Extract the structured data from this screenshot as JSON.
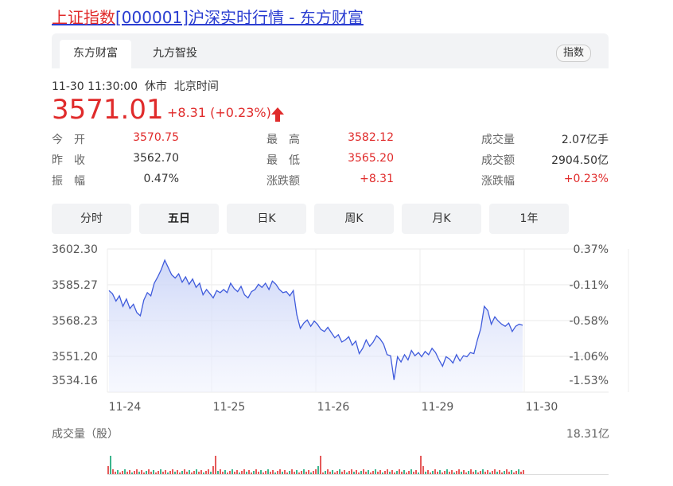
{
  "page_title": {
    "part1": "上证指数",
    "part2": "[000001]沪深实时行情 - 东方财富"
  },
  "tabs": [
    {
      "label": "东方财富"
    },
    {
      "label": "九方智投"
    }
  ],
  "tab_pill": "指数",
  "quote": {
    "time": "11-30 11:30:00",
    "status": "休市",
    "tz": "北京时间",
    "price": "3571.01",
    "change": "+8.31 (+0.23%)"
  },
  "stats": [
    {
      "label": "今　开",
      "value": "3570.75",
      "color": "red"
    },
    {
      "label": "最　高",
      "value": "3582.12",
      "color": "red"
    },
    {
      "label": "成交量",
      "value": "2.07亿手",
      "color": "black"
    },
    {
      "label": "昨　收",
      "value": "3562.70",
      "color": "black"
    },
    {
      "label": "最　低",
      "value": "3565.20",
      "color": "red"
    },
    {
      "label": "成交额",
      "value": "2904.50亿",
      "color": "black"
    },
    {
      "label": "振　幅",
      "value": "0.47%",
      "color": "black"
    },
    {
      "label": "涨跌额",
      "value": "+8.31",
      "color": "red"
    },
    {
      "label": "涨跌幅",
      "value": "+0.23%",
      "color": "red"
    }
  ],
  "period_buttons": [
    "分时",
    "五日",
    "日K",
    "周K",
    "月K",
    "1年"
  ],
  "active_period": "五日",
  "chart_data": {
    "type": "area",
    "x_tick_labels": [
      "11-24",
      "11-25",
      "11-26",
      "11-29",
      "11-30"
    ],
    "y_tick_labels": [
      "3602.30",
      "3585.27",
      "3568.23",
      "3551.20",
      "3534.16"
    ],
    "y_right_tick_labels": [
      "0.37%",
      "-0.11%",
      "-0.58%",
      "-1.06%",
      "-1.53%"
    ],
    "ylim": [
      3534.16,
      3602.3
    ],
    "days": [
      {
        "date": "11-24",
        "values": [
          3582.5,
          3581.0,
          3577.5,
          3580.0,
          3575.0,
          3578.5,
          3574.0,
          3576.0,
          3572.0,
          3570.5,
          3578.0,
          3581.5,
          3580.0,
          3586.0,
          3589.0,
          3592.5,
          3597.0,
          3593.5,
          3590.0,
          3588.5,
          3590.5,
          3586.5,
          3589.0,
          3585.5,
          3588.0,
          3584.0,
          3586.0,
          3580.5,
          3583.0,
          3581.0
        ]
      },
      {
        "date": "11-25",
        "values": [
          3579.0,
          3582.5,
          3581.5,
          3583.0,
          3581.5,
          3586.0,
          3583.5,
          3582.0,
          3584.5,
          3580.5,
          3579.0,
          3582.0,
          3583.0,
          3585.5,
          3584.0,
          3586.0,
          3583.0,
          3587.0,
          3585.5,
          3583.0,
          3581.5,
          3582.0,
          3580.0,
          3582.5,
          3571.0,
          3564.5,
          3567.0,
          3568.5,
          3565.5,
          3568.0
        ]
      },
      {
        "date": "11-26",
        "values": [
          3566.5,
          3564.0,
          3563.0,
          3565.0,
          3562.5,
          3560.0,
          3561.5,
          3558.0,
          3559.0,
          3560.5,
          3556.5,
          3558.5,
          3552.5,
          3555.0,
          3559.0,
          3556.0,
          3558.0,
          3561.0,
          3559.5,
          3557.0,
          3552.0,
          3551.5,
          3540.0,
          3551.0,
          3548.5,
          3552.0,
          3549.5,
          3554.0,
          3551.5,
          3553.0
        ]
      },
      {
        "date": "11-29",
        "values": [
          3551.0,
          3553.5,
          3552.0,
          3555.0,
          3553.0,
          3549.5,
          3546.5,
          3551.0,
          3550.0,
          3548.0,
          3552.0,
          3549.0,
          3551.5,
          3551.0,
          3553.0,
          3552.5,
          3559.0,
          3564.5,
          3575.0,
          3573.0,
          3566.5,
          3570.0,
          3568.0,
          3566.5,
          3565.5,
          3567.0,
          3563.0,
          3565.5,
          3566.5,
          3566.0
        ]
      }
    ],
    "volume_label": "成交量（股）",
    "volume_max_label": "18.31亿"
  }
}
